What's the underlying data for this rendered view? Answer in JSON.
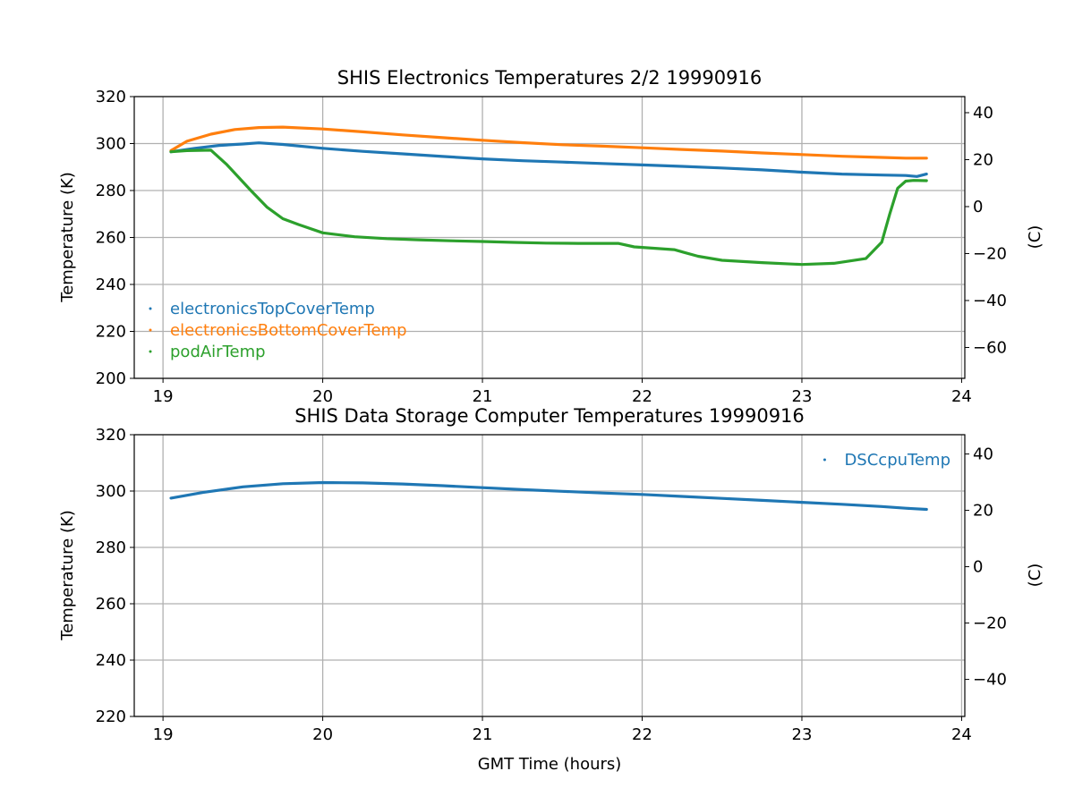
{
  "chart_data": [
    {
      "type": "line",
      "title": "SHIS Electronics Temperatures 2/2 19990916",
      "xlabel": "",
      "ylabel": "Temperature (K)",
      "ylabel_right": "(C)",
      "xlim": [
        18.82,
        24.02
      ],
      "ylim": [
        200,
        320
      ],
      "ylim_right": [
        -73.15,
        46.85
      ],
      "x_ticks": [
        19,
        20,
        21,
        22,
        23,
        24
      ],
      "y_ticks": [
        200,
        220,
        240,
        260,
        280,
        300,
        320
      ],
      "y_ticks_right": [
        -60,
        -40,
        -20,
        0,
        20,
        40
      ],
      "grid": true,
      "legend_position": "lower-left",
      "series": [
        {
          "name": "electronicsTopCoverTemp",
          "color": "#1f77b4",
          "x": [
            19.05,
            19.2,
            19.35,
            19.5,
            19.6,
            19.75,
            20.0,
            20.25,
            20.5,
            20.75,
            21.0,
            21.25,
            21.5,
            21.75,
            22.0,
            22.25,
            22.5,
            22.75,
            23.0,
            23.25,
            23.5,
            23.65,
            23.72,
            23.78
          ],
          "y": [
            296.5,
            298.0,
            299.2,
            299.8,
            300.3,
            299.6,
            298.0,
            296.7,
            295.6,
            294.5,
            293.5,
            292.7,
            292.1,
            291.5,
            290.9,
            290.3,
            289.6,
            288.8,
            287.8,
            287.0,
            286.6,
            286.4,
            286.0,
            287.0
          ]
        },
        {
          "name": "electronicsBottomCoverTemp",
          "color": "#ff7f0e",
          "x": [
            19.05,
            19.15,
            19.3,
            19.45,
            19.6,
            19.75,
            20.0,
            20.25,
            20.5,
            20.75,
            21.0,
            21.25,
            21.5,
            21.75,
            22.0,
            22.25,
            22.5,
            22.75,
            23.0,
            23.25,
            23.5,
            23.65,
            23.78
          ],
          "y": [
            297.0,
            301.0,
            304.0,
            306.0,
            306.8,
            307.0,
            306.2,
            305.0,
            303.7,
            302.5,
            301.4,
            300.4,
            299.5,
            298.9,
            298.2,
            297.5,
            296.8,
            296.0,
            295.3,
            294.6,
            294.1,
            293.8,
            293.8
          ]
        },
        {
          "name": "podAirTemp",
          "color": "#2ca02c",
          "x": [
            19.05,
            19.15,
            19.3,
            19.4,
            19.55,
            19.65,
            19.75,
            19.85,
            20.0,
            20.2,
            20.4,
            20.6,
            20.8,
            21.0,
            21.2,
            21.4,
            21.6,
            21.85,
            21.95,
            22.2,
            22.35,
            22.5,
            22.75,
            23.0,
            23.2,
            23.4,
            23.5,
            23.55,
            23.6,
            23.65,
            23.7,
            23.78
          ],
          "y": [
            296.5,
            297.0,
            297.2,
            291.0,
            280.0,
            273.0,
            268.0,
            265.5,
            262.0,
            260.3,
            259.5,
            259.0,
            258.6,
            258.3,
            257.9,
            257.6,
            257.5,
            257.5,
            256.0,
            254.8,
            252.0,
            250.3,
            249.3,
            248.5,
            249.0,
            251.0,
            258.0,
            270.0,
            281.0,
            284.0,
            284.3,
            284.2
          ]
        }
      ]
    },
    {
      "type": "line",
      "title": "SHIS Data Storage Computer Temperatures 19990916",
      "xlabel": "GMT Time (hours)",
      "ylabel": "Temperature (K)",
      "ylabel_right": "(C)",
      "xlim": [
        18.82,
        24.02
      ],
      "ylim": [
        220,
        320
      ],
      "ylim_right": [
        -53.15,
        46.85
      ],
      "x_ticks": [
        19,
        20,
        21,
        22,
        23,
        24
      ],
      "y_ticks": [
        220,
        240,
        260,
        280,
        300,
        320
      ],
      "y_ticks_right": [
        -40,
        -20,
        0,
        20,
        40
      ],
      "grid": true,
      "legend_position": "upper-right",
      "series": [
        {
          "name": "DSCcpuTemp",
          "color": "#1f77b4",
          "x": [
            19.05,
            19.25,
            19.5,
            19.75,
            20.0,
            20.25,
            20.5,
            20.75,
            21.0,
            21.25,
            21.5,
            21.75,
            22.0,
            22.25,
            22.5,
            22.75,
            23.0,
            23.25,
            23.5,
            23.65,
            23.78
          ],
          "y": [
            297.5,
            299.5,
            301.5,
            302.6,
            303.0,
            302.9,
            302.5,
            301.9,
            301.2,
            300.5,
            299.9,
            299.3,
            298.8,
            298.1,
            297.4,
            296.7,
            296.0,
            295.3,
            294.5,
            293.9,
            293.5
          ]
        }
      ]
    }
  ]
}
